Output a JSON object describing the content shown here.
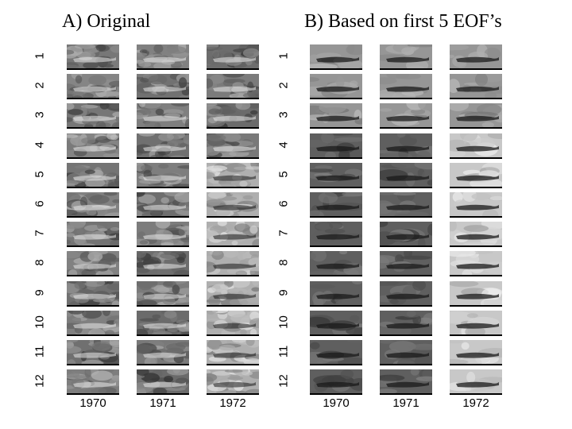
{
  "panels": [
    {
      "id": "A",
      "title": "A) Original",
      "row_labels": [
        "1",
        "2",
        "3",
        "4",
        "5",
        "6",
        "7",
        "8",
        "9",
        "10",
        "11",
        "12"
      ],
      "column_labels": [
        "1970",
        "1971",
        "1972"
      ]
    },
    {
      "id": "B",
      "title": "B) Based on first 5 EOF’s",
      "row_labels": [
        "1",
        "2",
        "3",
        "4",
        "5",
        "6",
        "7",
        "8",
        "9",
        "10",
        "11",
        "12"
      ],
      "column_labels": [
        "1970",
        "1971",
        "1972"
      ]
    }
  ]
}
